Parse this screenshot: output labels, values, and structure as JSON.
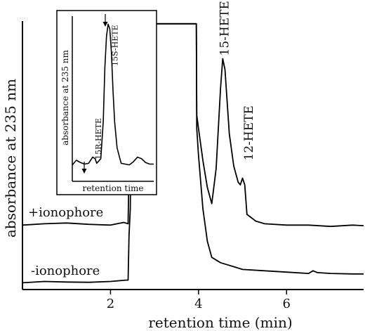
{
  "chart_data": [
    {
      "type": "line",
      "xlabel": "retention time (min)",
      "ylabel": "absorbance at 235 nm",
      "xlim": [
        0,
        7.75
      ],
      "ylim": [
        0,
        1
      ],
      "x_ticks": [
        "2",
        "4",
        "6"
      ],
      "x_tick_values": [
        2,
        4,
        6
      ],
      "grid": false,
      "annotations": [
        {
          "text": "15-HETE",
          "x": 4.55,
          "y": 0.86
        },
        {
          "text": "12-HETE",
          "x": 5.1,
          "y": 0.47
        }
      ],
      "series": [
        {
          "name": "+ionophore",
          "x": [
            0,
            0.5,
            1.0,
            1.5,
            2.0,
            2.3,
            2.4,
            2.42,
            2.45,
            2.5,
            3.95,
            3.96,
            4.0,
            4.1,
            4.2,
            4.3,
            4.4,
            4.5,
            4.55,
            4.6,
            4.7,
            4.8,
            4.9,
            4.95,
            5.0,
            5.05,
            5.1,
            5.3,
            5.5,
            6.0,
            6.5,
            7.0,
            7.5,
            7.75
          ],
          "y": [
            0.24,
            0.245,
            0.248,
            0.243,
            0.24,
            0.25,
            0.245,
            0.45,
            0.6,
            0.99,
            0.99,
            0.65,
            0.6,
            0.48,
            0.38,
            0.32,
            0.45,
            0.75,
            0.86,
            0.82,
            0.58,
            0.46,
            0.4,
            0.39,
            0.415,
            0.39,
            0.28,
            0.255,
            0.245,
            0.24,
            0.24,
            0.235,
            0.24,
            0.238
          ]
        },
        {
          "name": "-ionophore",
          "x": [
            0,
            0.5,
            1.0,
            1.5,
            2.0,
            2.35,
            2.4,
            2.42,
            2.45,
            2.5,
            3.95,
            3.96,
            4.0,
            4.1,
            4.2,
            4.3,
            4.5,
            4.8,
            5.0,
            5.5,
            6.0,
            6.5,
            6.6,
            6.7,
            7.0,
            7.5,
            7.75
          ],
          "y": [
            0.025,
            0.03,
            0.028,
            0.027,
            0.03,
            0.035,
            0.035,
            0.2,
            0.3,
            0.99,
            0.99,
            0.6,
            0.5,
            0.3,
            0.18,
            0.12,
            0.1,
            0.085,
            0.075,
            0.07,
            0.065,
            0.06,
            0.07,
            0.063,
            0.06,
            0.058,
            0.058
          ]
        }
      ]
    },
    {
      "type": "line",
      "xlabel": "retention time",
      "ylabel": "absorbance at 235 nm",
      "xlim": [
        0,
        1
      ],
      "ylim": [
        0,
        1
      ],
      "grid": false,
      "annotations": [
        {
          "text": "15R-HETE",
          "x": 0.25,
          "y": 0.2
        },
        {
          "text": "15S-HETE",
          "x": 0.47,
          "y": 0.93
        }
      ],
      "series": [
        {
          "x": [
            0,
            0.05,
            0.1,
            0.15,
            0.2,
            0.25,
            0.28,
            0.3,
            0.35,
            0.38,
            0.4,
            0.42,
            0.44,
            0.46,
            0.48,
            0.5,
            0.52,
            0.55,
            0.6,
            0.65,
            0.7,
            0.75,
            0.8,
            0.85,
            0.9,
            0.95,
            1.0
          ],
          "y": [
            0.07,
            0.1,
            0.085,
            0.075,
            0.08,
            0.12,
            0.11,
            0.08,
            0.11,
            0.35,
            0.7,
            0.9,
            0.98,
            0.95,
            0.8,
            0.55,
            0.35,
            0.18,
            0.08,
            0.075,
            0.07,
            0.09,
            0.12,
            0.11,
            0.085,
            0.075,
            0.075
          ]
        }
      ]
    }
  ]
}
